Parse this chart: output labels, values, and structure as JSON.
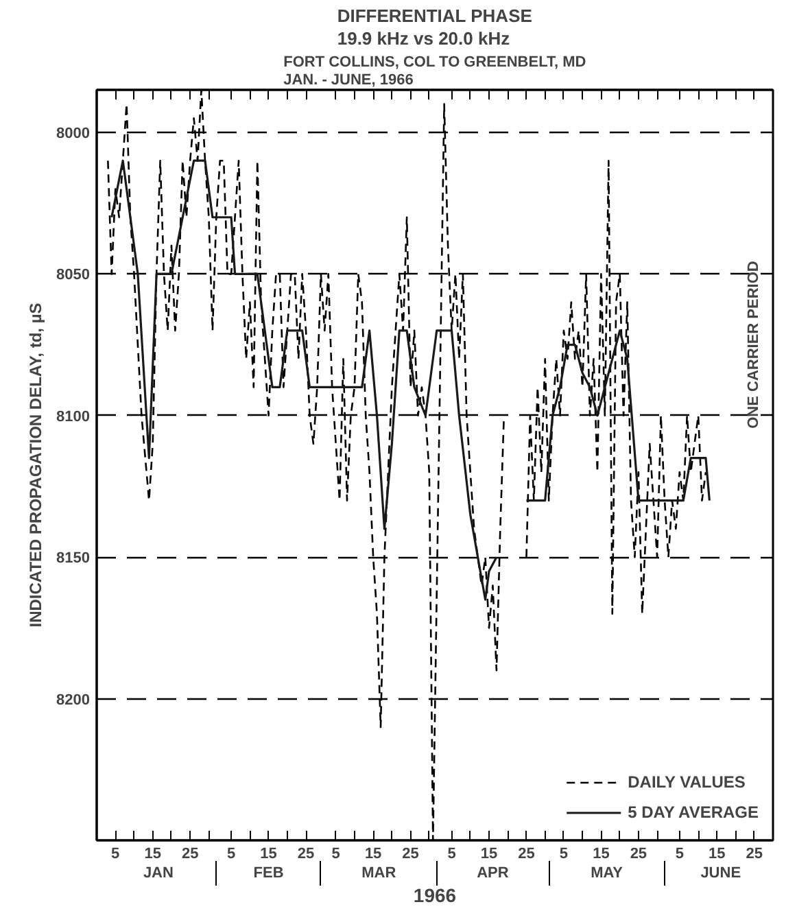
{
  "chart_data": {
    "type": "line",
    "title": "DIFFERENTIAL PHASE\n19.9 kHz vs 20.0 kHz",
    "subtitle": "FORT COLLINS, COL TO GREENBELT, MD\nJAN. - JUNE, 1966",
    "xlabel": "1966",
    "ylabel": "INDICATED PROPAGATION DELAY, td, µS",
    "series": [
      {
        "name": "DAILY VALUES",
        "color": "#000000",
        "line_style": "dashed",
        "x": [
          "1966-01-03",
          "1966-01-04",
          "1966-01-05",
          "1966-01-06",
          "1966-01-07",
          "1966-01-08",
          "1966-01-09",
          "1966-01-10",
          "1966-01-12",
          "1966-01-14",
          "1966-01-15",
          "1966-01-16",
          "1966-01-17",
          "1966-01-18",
          "1966-01-19",
          "1966-01-20",
          "1966-01-21",
          "1966-01-22",
          "1966-01-23",
          "1966-01-24",
          "1966-01-25",
          "1966-01-26",
          "1966-01-27",
          "1966-01-28",
          "1966-01-29",
          "1966-01-30",
          "1966-01-31",
          "1966-02-01",
          "1966-02-02",
          "1966-02-03",
          "1966-02-04",
          "1966-02-05",
          "1966-02-06",
          "1966-02-07",
          "1966-02-08",
          "1966-02-09",
          "1966-02-10",
          "1966-02-11",
          "1966-02-12",
          "1966-02-13",
          "1966-02-14",
          "1966-02-15",
          "1966-02-16",
          "1966-02-17",
          "1966-02-18",
          "1966-02-19",
          "1966-02-20",
          "1966-02-21",
          "1966-02-22",
          "1966-02-23",
          "1966-02-24",
          "1966-02-25",
          "1966-02-26",
          "1966-02-27",
          "1966-02-28",
          "1966-03-01",
          "1966-03-02",
          "1966-03-03",
          "1966-03-04",
          "1966-03-05",
          "1966-03-06",
          "1966-03-07",
          "1966-03-08",
          "1966-03-09",
          "1966-03-10",
          "1966-03-11",
          "1966-03-12",
          "1966-03-13",
          "1966-03-14",
          "1966-03-15",
          "1966-03-16",
          "1966-03-17",
          "1966-03-18",
          "1966-03-19",
          "1966-03-20",
          "1966-03-21",
          "1966-03-22",
          "1966-03-23",
          "1966-03-24",
          "1966-03-25",
          "1966-03-26",
          "1966-03-27",
          "1966-03-28",
          "1966-03-29",
          "1966-03-30",
          "1966-03-31",
          "1966-04-03",
          "1966-04-04",
          "1966-04-05",
          "1966-04-06",
          "1966-04-07",
          "1966-04-08",
          "1966-04-09",
          "1966-04-10",
          "1966-04-11",
          "1966-04-12",
          "1966-04-13",
          "1966-04-14",
          "1966-04-15",
          "1966-04-16",
          "1966-04-17",
          "1966-04-18",
          "1966-04-19",
          "1966-04-21",
          "1966-04-25",
          "1966-04-26",
          "1966-04-27",
          "1966-04-28",
          "1966-04-29",
          "1966-04-30",
          "1966-05-01",
          "1966-05-02",
          "1966-05-03",
          "1966-05-04",
          "1966-05-05",
          "1966-05-06",
          "1966-05-07",
          "1966-05-08",
          "1966-05-09",
          "1966-05-10",
          "1966-05-11",
          "1966-05-12",
          "1966-05-13",
          "1966-05-14",
          "1966-05-15",
          "1966-05-16",
          "1966-05-17",
          "1966-05-18",
          "1966-05-19",
          "1966-05-20",
          "1966-05-21",
          "1966-05-22",
          "1966-05-23",
          "1966-05-24",
          "1966-05-25",
          "1966-05-26",
          "1966-05-27",
          "1966-05-28",
          "1966-05-29",
          "1966-05-30",
          "1966-05-31",
          "1966-06-01",
          "1966-06-02",
          "1966-06-03",
          "1966-06-04",
          "1966-06-05",
          "1966-06-06",
          "1966-06-07",
          "1966-06-08",
          "1966-06-09",
          "1966-06-10",
          "1966-06-11",
          "1966-06-12"
        ],
        "values": [
          8010,
          8050,
          8020,
          8030,
          8010,
          7990,
          8030,
          8050,
          8100,
          8130,
          8110,
          8050,
          8010,
          8050,
          8070,
          8040,
          8070,
          8050,
          8010,
          8030,
          8010,
          7995,
          8010,
          7985,
          8010,
          8030,
          8070,
          8030,
          8010,
          8010,
          8050,
          8050,
          8030,
          8010,
          8050,
          8080,
          8060,
          8090,
          8010,
          8060,
          8080,
          8100,
          8070,
          8050,
          8050,
          8090,
          8070,
          8050,
          8050,
          8080,
          8050,
          8070,
          8100,
          8110,
          8090,
          8050,
          8070,
          8050,
          8090,
          8110,
          8130,
          8080,
          8130,
          8100,
          8090,
          8050,
          8060,
          8100,
          8120,
          8150,
          8170,
          8210,
          8150,
          8120,
          8090,
          8070,
          8050,
          8070,
          8030,
          8090,
          8070,
          8100,
          8090,
          8100,
          8120,
          8250,
          7990,
          8040,
          8070,
          8050,
          8080,
          8050,
          8100,
          8120,
          8140,
          8150,
          8160,
          8150,
          8175,
          8160,
          8190,
          8140,
          8100,
          null,
          8150,
          8100,
          8130,
          8090,
          8120,
          8080,
          8130,
          8100,
          8080,
          8100,
          8070,
          8080,
          8060,
          8080,
          8070,
          8090,
          8050,
          8100,
          8080,
          8120,
          8050,
          8100,
          8010,
          8170,
          8060,
          8050,
          8100,
          8060,
          8130,
          8150,
          8120,
          8170,
          8140,
          8110,
          8130,
          8150,
          8100,
          8130,
          8150,
          8130,
          8140,
          8120,
          8130,
          8100,
          8120,
          8110,
          8100,
          8130,
          8120
        ]
      },
      {
        "name": "5 DAY AVERAGE",
        "color": "#1a1a1a",
        "line_style": "solid",
        "x": [
          "1966-01-04",
          "1966-01-07",
          "1966-01-09",
          "1966-01-11",
          "1966-01-14",
          "1966-01-16",
          "1966-01-20",
          "1966-01-23",
          "1966-01-26",
          "1966-01-29",
          "1966-01-31",
          "1966-02-05",
          "1966-02-06",
          "1966-02-12",
          "1966-02-14",
          "1966-02-16",
          "1966-02-18",
          "1966-02-20",
          "1966-02-24",
          "1966-02-26",
          "1966-03-12",
          "1966-03-14",
          "1966-03-16",
          "1966-03-18",
          "1966-03-20",
          "1966-03-22",
          "1966-03-24",
          "1966-03-26",
          "1966-03-29",
          "1966-04-01",
          "1966-04-05",
          "1966-04-07",
          "1966-04-10",
          "1966-04-12",
          "1966-04-14",
          "1966-04-15",
          "1966-04-17",
          "1966-04-21",
          "1966-04-25",
          "1966-04-30",
          "1966-05-02",
          "1966-05-04",
          "1966-05-06",
          "1966-05-08",
          "1966-05-10",
          "1966-05-12",
          "1966-05-14",
          "1966-05-16",
          "1966-05-18",
          "1966-05-20",
          "1966-05-22",
          "1966-05-25",
          "1966-05-29",
          "1966-06-06",
          "1966-06-08",
          "1966-06-12",
          "1966-06-13"
        ],
        "values": [
          8030,
          8010,
          8030,
          8050,
          8115,
          8050,
          8050,
          8030,
          8010,
          8010,
          8030,
          8030,
          8050,
          8050,
          8070,
          8090,
          8090,
          8070,
          8070,
          8090,
          8090,
          8070,
          8100,
          8140,
          8110,
          8070,
          8070,
          8090,
          8100,
          8070,
          8070,
          8100,
          8135,
          8150,
          8165,
          8155,
          8150,
          null,
          8130,
          8130,
          8100,
          8090,
          8075,
          8075,
          8085,
          8090,
          8100,
          8090,
          8080,
          8070,
          8080,
          8130,
          8130,
          8130,
          8115,
          8115,
          8130
        ]
      }
    ],
    "xlim": [
      "1965-12-31",
      "1966-06-30"
    ],
    "xticks": [
      {
        "value": "1966-01-05",
        "label": "5"
      },
      {
        "value": "1966-01-10",
        "label": null
      },
      {
        "value": "1966-01-15",
        "label": "15"
      },
      {
        "value": "1966-01-20",
        "label": null
      },
      {
        "value": "1966-01-25",
        "label": "25"
      },
      {
        "value": "1966-01-30",
        "label": null
      },
      {
        "value": "1966-02-05",
        "label": "5"
      },
      {
        "value": "1966-02-10",
        "label": null
      },
      {
        "value": "1966-02-15",
        "label": "15"
      },
      {
        "value": "1966-02-20",
        "label": null
      },
      {
        "value": "1966-02-25",
        "label": "25"
      },
      {
        "value": "1966-03-05",
        "label": "5"
      },
      {
        "value": "1966-03-10",
        "label": null
      },
      {
        "value": "1966-03-15",
        "label": "15"
      },
      {
        "value": "1966-03-20",
        "label": null
      },
      {
        "value": "1966-03-25",
        "label": "25"
      },
      {
        "value": "1966-03-30",
        "label": null
      },
      {
        "value": "1966-04-05",
        "label": "5"
      },
      {
        "value": "1966-04-10",
        "label": null
      },
      {
        "value": "1966-04-15",
        "label": "15"
      },
      {
        "value": "1966-04-20",
        "label": null
      },
      {
        "value": "1966-04-25",
        "label": "25"
      },
      {
        "value": "1966-04-30",
        "label": null
      },
      {
        "value": "1966-05-05",
        "label": "5"
      },
      {
        "value": "1966-05-10",
        "label": null
      },
      {
        "value": "1966-05-15",
        "label": "15"
      },
      {
        "value": "1966-05-20",
        "label": null
      },
      {
        "value": "1966-05-25",
        "label": "25"
      },
      {
        "value": "1966-05-30",
        "label": null
      },
      {
        "value": "1966-06-05",
        "label": "5"
      },
      {
        "value": "1966-06-10",
        "label": null
      },
      {
        "value": "1966-06-15",
        "label": "15"
      },
      {
        "value": "1966-06-20",
        "label": null
      },
      {
        "value": "1966-06-25",
        "label": "25"
      }
    ],
    "ylim": [
      8250,
      7985
    ],
    "yticks": [
      8000,
      8050,
      8100,
      8150,
      8200
    ],
    "grid": "y",
    "legend": "bottom right",
    "annotations": [
      "JAN",
      "FEB",
      "MAR",
      "APR",
      "MAY",
      "JUNE",
      "ONE CARRIER PERIOD"
    ]
  }
}
